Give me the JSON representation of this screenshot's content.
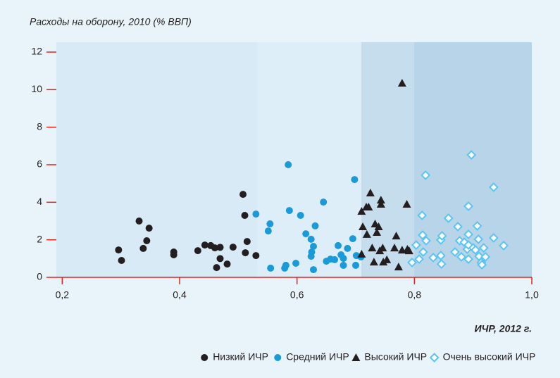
{
  "chart_data": {
    "type": "scatter",
    "title": "Расходы на оборону, 2010 (% ВВП)",
    "x_label": "ИЧР, 2012 г.",
    "xlim": [
      0.19,
      1.0
    ],
    "xticks": [
      {
        "value": 0.2,
        "label": "0,2"
      },
      {
        "value": 0.4,
        "label": "0,4"
      },
      {
        "value": 0.6,
        "label": "0,6"
      },
      {
        "value": 0.8,
        "label": "0,8"
      },
      {
        "value": 1.0,
        "label": "1,0"
      }
    ],
    "ylim": [
      0,
      12
    ],
    "yticks": [
      0,
      2,
      4,
      6,
      8,
      10,
      12
    ],
    "legend": "bottom-right",
    "series": [
      {
        "name": "Низкий ИЧР",
        "color": "#231f20",
        "marker": "circle",
        "x": [
          0.296,
          0.301,
          0.331,
          0.338,
          0.344,
          0.348,
          0.39,
          0.39,
          0.431,
          0.443,
          0.453,
          0.46,
          0.469,
          0.463,
          0.469,
          0.481,
          0.491,
          0.508,
          0.511,
          0.515,
          0.512,
          0.53
        ],
        "values": [
          1.46,
          0.9,
          3.0,
          1.54,
          1.95,
          2.62,
          1.35,
          1.2,
          1.42,
          1.72,
          1.69,
          1.57,
          1.6,
          0.52,
          1.0,
          0.71,
          1.61,
          4.42,
          3.3,
          1.91,
          1.31,
          1.16
        ]
      },
      {
        "name": "Средний ИЧР",
        "color": "#1a9ad6",
        "marker": "circle",
        "x": [
          0.53,
          0.551,
          0.554,
          0.555,
          0.579,
          0.581,
          0.585,
          0.587,
          0.598,
          0.606,
          0.615,
          0.624,
          0.625,
          0.628,
          0.631,
          0.624,
          0.628,
          0.645,
          0.65,
          0.657,
          0.664,
          0.67,
          0.675,
          0.679,
          0.686,
          0.679,
          0.695,
          0.698,
          0.7,
          0.701,
          0.709
        ],
        "values": [
          3.37,
          2.47,
          2.85,
          0.49,
          0.49,
          0.64,
          6.0,
          3.56,
          0.75,
          3.3,
          2.32,
          1.12,
          1.35,
          1.65,
          2.74,
          2.03,
          0.41,
          4.01,
          0.86,
          0.97,
          0.94,
          1.69,
          1.2,
          0.64,
          1.54,
          1.01,
          2.06,
          5.21,
          0.64,
          1.16,
          1.09
        ]
      },
      {
        "name": "Высокий ИЧР",
        "color": "#231f20",
        "marker": "triangle",
        "x": [
          0.71,
          0.71,
          0.712,
          0.718,
          0.719,
          0.722,
          0.725,
          0.728,
          0.731,
          0.733,
          0.736,
          0.739,
          0.741,
          0.743,
          0.743,
          0.746,
          0.747,
          0.753,
          0.766,
          0.769,
          0.773,
          0.779,
          0.779,
          0.787,
          0.788,
          0.791
        ],
        "values": [
          1.24,
          3.52,
          2.7,
          3.75,
          2.29,
          3.75,
          4.5,
          1.57,
          0.82,
          2.85,
          2.4,
          2.7,
          1.42,
          3.9,
          4.12,
          1.57,
          0.82,
          0.94,
          1.57,
          2.21,
          0.56,
          10.35,
          1.46,
          3.9,
          1.5,
          1.42
        ]
      },
      {
        "name": "Очень высокий ИЧР",
        "color": "#5bc4f1",
        "marker": "diamond",
        "x": [
          0.796,
          0.803,
          0.808,
          0.813,
          0.814,
          0.815,
          0.82,
          0.819,
          0.832,
          0.845,
          0.845,
          0.846,
          0.847,
          0.858,
          0.869,
          0.874,
          0.877,
          0.88,
          0.885,
          0.89,
          0.892,
          0.892,
          0.892,
          0.892,
          0.897,
          0.9,
          0.904,
          0.907,
          0.909,
          0.91,
          0.914,
          0.915,
          0.918,
          0.921,
          0.935,
          0.935,
          0.952
        ],
        "values": [
          0.79,
          1.72,
          0.97,
          3.3,
          2.25,
          1.35,
          1.95,
          5.44,
          1.05,
          1.16,
          1.99,
          0.71,
          2.21,
          3.15,
          1.35,
          2.7,
          1.95,
          1.09,
          1.87,
          1.5,
          3.79,
          1.72,
          2.29,
          0.97,
          6.52,
          1.57,
          1.46,
          2.74,
          2.03,
          1.12,
          0.79,
          0.67,
          1.57,
          1.09,
          2.1,
          4.8,
          1.69
        ]
      }
    ]
  }
}
